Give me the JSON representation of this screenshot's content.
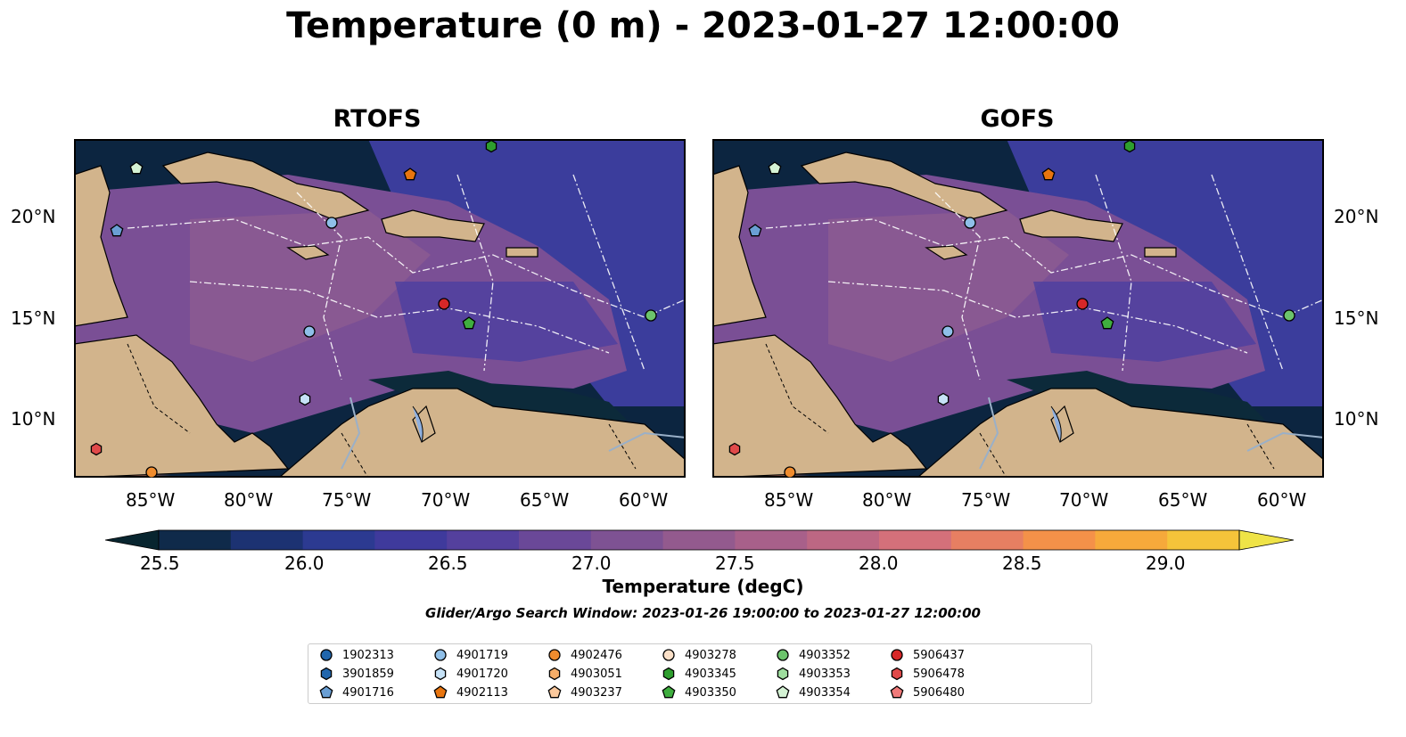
{
  "title": "Temperature (0 m) - 2023-01-27 12:00:00",
  "panels": [
    {
      "name": "RTOFS"
    },
    {
      "name": "GOFS"
    }
  ],
  "axes": {
    "lon_ticks": [
      "85°W",
      "80°W",
      "75°W",
      "70°W",
      "65°W",
      "60°W"
    ],
    "lat_ticks": [
      "20°N",
      "15°N",
      "10°N"
    ]
  },
  "colorbar": {
    "label": "Temperature (degC)",
    "ticks": [
      "25.5",
      "26.0",
      "26.5",
      "27.0",
      "27.5",
      "28.0",
      "28.5",
      "29.0"
    ],
    "colors": [
      "#08252f",
      "#0f2a4a",
      "#1c3272",
      "#2c3a91",
      "#3f3a9c",
      "#54409d",
      "#6a4898",
      "#7e5293",
      "#935a8e",
      "#a8608a",
      "#bd6783",
      "#d4707a",
      "#e77f62",
      "#f49149",
      "#f6a93b",
      "#f5c43a",
      "#efe347"
    ]
  },
  "search_window": "Glider/Argo Search Window: 2023-01-26 19:00:00 to 2023-01-27 12:00:00",
  "legend": [
    {
      "id": "1902313",
      "marker": "circle",
      "color": "#2166ac"
    },
    {
      "id": "3901859",
      "marker": "hexagon",
      "color": "#2166ac"
    },
    {
      "id": "4901716",
      "marker": "pentagon",
      "color": "#6a9fd4"
    },
    {
      "id": "4901719",
      "marker": "circle",
      "color": "#8fbfe8"
    },
    {
      "id": "4901720",
      "marker": "hexagon",
      "color": "#c6e2f7"
    },
    {
      "id": "4902113",
      "marker": "pentagon",
      "color": "#e8750f"
    },
    {
      "id": "4902476",
      "marker": "circle",
      "color": "#f08c2e"
    },
    {
      "id": "4903051",
      "marker": "hexagon",
      "color": "#f6ad68"
    },
    {
      "id": "4903237",
      "marker": "pentagon",
      "color": "#fac89c"
    },
    {
      "id": "4903278",
      "marker": "circle",
      "color": "#fbe0c8"
    },
    {
      "id": "4903345",
      "marker": "hexagon",
      "color": "#2e9e2e"
    },
    {
      "id": "4903350",
      "marker": "pentagon",
      "color": "#3fae3f"
    },
    {
      "id": "4903352",
      "marker": "circle",
      "color": "#6cc46c"
    },
    {
      "id": "4903353",
      "marker": "hexagon",
      "color": "#9edc9e"
    },
    {
      "id": "4903354",
      "marker": "pentagon",
      "color": "#d4f2d4"
    },
    {
      "id": "5906437",
      "marker": "circle",
      "color": "#d62728"
    },
    {
      "id": "5906478",
      "marker": "hexagon",
      "color": "#e04a4a"
    },
    {
      "id": "5906480",
      "marker": "pentagon",
      "color": "#f07a7a"
    }
  ]
}
